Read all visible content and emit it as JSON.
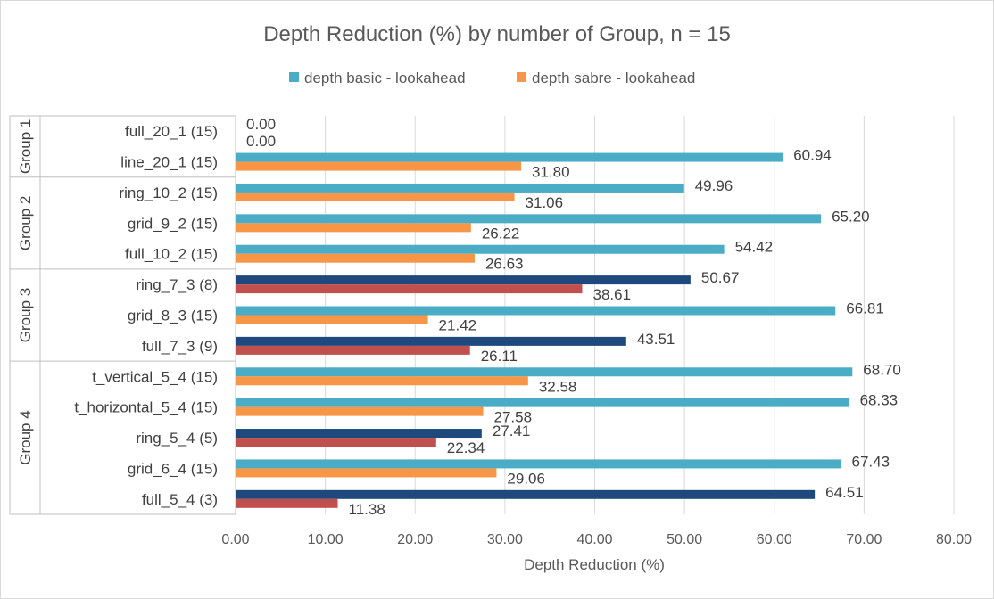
{
  "chart_data": {
    "type": "bar",
    "orientation": "horizontal",
    "title": "Depth Reduction (%) by number of Group, n = 15",
    "xlabel": "Depth Reduction (%)",
    "ylabel": "",
    "xlim": [
      0,
      80
    ],
    "ticks": [
      "0.00",
      "10.00",
      "20.00",
      "30.00",
      "40.00",
      "50.00",
      "60.00",
      "70.00",
      "80.00"
    ],
    "grid": true,
    "legend_position": "top",
    "series": [
      {
        "name": "depth basic - lookahead",
        "color": "#4bacc6",
        "alt_color": "#1f497d"
      },
      {
        "name": "depth sabre - lookahead",
        "color": "#f79646",
        "alt_color": "#c0504d"
      }
    ],
    "groups": [
      {
        "name": "Group 1",
        "categories": [
          {
            "label": "full_20_1 (15)",
            "basic": 0.0,
            "sabre": 0.0,
            "alt_colors": false
          },
          {
            "label": "line_20_1 (15)",
            "basic": 60.94,
            "sabre": 31.8,
            "alt_colors": false
          }
        ]
      },
      {
        "name": "Group 2",
        "categories": [
          {
            "label": "ring_10_2 (15)",
            "basic": 49.96,
            "sabre": 31.06,
            "alt_colors": false
          },
          {
            "label": "grid_9_2 (15)",
            "basic": 65.2,
            "sabre": 26.22,
            "alt_colors": false
          },
          {
            "label": "full_10_2 (15)",
            "basic": 54.42,
            "sabre": 26.63,
            "alt_colors": false
          }
        ]
      },
      {
        "name": "Group 3",
        "categories": [
          {
            "label": "ring_7_3 (8)",
            "basic": 50.67,
            "sabre": 38.61,
            "alt_colors": true
          },
          {
            "label": "grid_8_3 (15)",
            "basic": 66.81,
            "sabre": 21.42,
            "alt_colors": false
          },
          {
            "label": "full_7_3 (9)",
            "basic": 43.51,
            "sabre": 26.11,
            "alt_colors": true
          }
        ]
      },
      {
        "name": "Group 4",
        "categories": [
          {
            "label": "t_vertical_5_4 (15)",
            "basic": 68.7,
            "sabre": 32.58,
            "alt_colors": false
          },
          {
            "label": "t_horizontal_5_4 (15)",
            "basic": 68.33,
            "sabre": 27.58,
            "alt_colors": false
          },
          {
            "label": "ring_5_4 (5)",
            "basic": 27.41,
            "sabre": 22.34,
            "alt_colors": true
          },
          {
            "label": "grid_6_4 (15)",
            "basic": 67.43,
            "sabre": 29.06,
            "alt_colors": false
          },
          {
            "label": "full_5_4 (3)",
            "basic": 64.51,
            "sabre": 11.38,
            "alt_colors": true
          }
        ]
      }
    ]
  }
}
